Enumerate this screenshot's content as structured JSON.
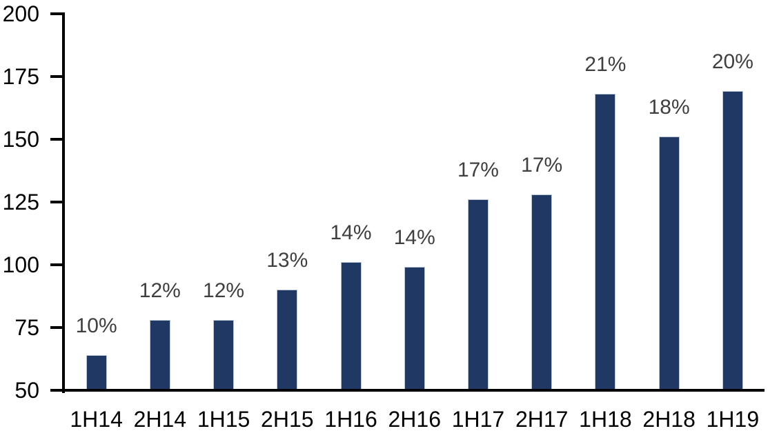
{
  "chart_data": {
    "type": "bar",
    "title": "",
    "xlabel": "",
    "ylabel": "",
    "categories": [
      "1H14",
      "2H14",
      "1H15",
      "2H15",
      "1H16",
      "2H16",
      "1H17",
      "2H17",
      "1H18",
      "2H18",
      "1H19"
    ],
    "values": [
      64,
      78,
      78,
      90,
      101,
      99,
      126,
      128,
      168,
      151,
      169
    ],
    "bar_labels": [
      "10%",
      "12%",
      "12%",
      "13%",
      "14%",
      "14%",
      "17%",
      "17%",
      "21%",
      "18%",
      "20%"
    ],
    "ylim": [
      50,
      200
    ],
    "yticks": [
      50,
      75,
      100,
      125,
      150,
      175,
      200
    ],
    "grid": false,
    "legend": false,
    "colors": {
      "bar_fill": "#1F3864",
      "bar_border": "#BCC7D6",
      "data_label": "#3F3F3F",
      "axis": "#000000",
      "background": "#FFFFFF"
    }
  }
}
